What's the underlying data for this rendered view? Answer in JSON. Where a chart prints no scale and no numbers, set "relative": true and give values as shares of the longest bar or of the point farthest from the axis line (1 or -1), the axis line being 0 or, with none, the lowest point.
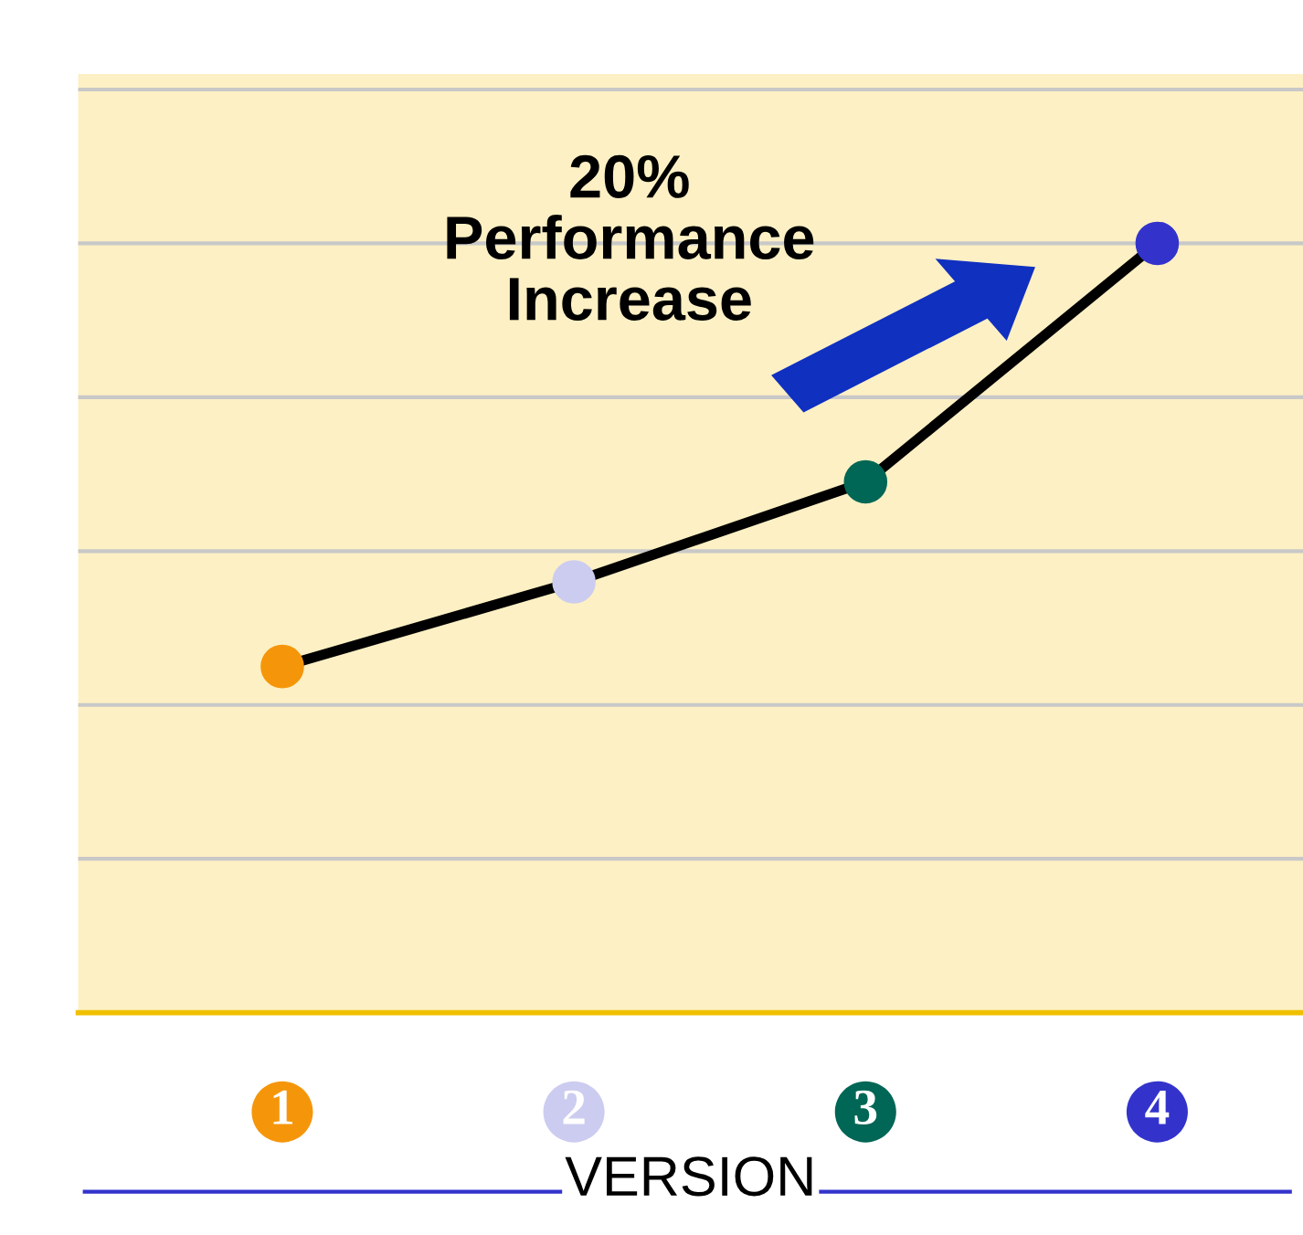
{
  "chart_data": {
    "type": "line",
    "relative": true,
    "categories": [
      "1",
      "2",
      "3",
      "4"
    ],
    "series": [
      {
        "color": "#000000",
        "colors": [
          "#f5960a",
          "#ccccf0",
          "#006655",
          "#3333cc"
        ],
        "values": [
          0.45,
          0.56,
          0.69,
          1.0
        ]
      }
    ],
    "xlabel": "VERSION",
    "annotations": [
      "20%\nPerformance\nIncrease"
    ],
    "marker": "circle",
    "line_style": "solid",
    "grid": "y"
  }
}
